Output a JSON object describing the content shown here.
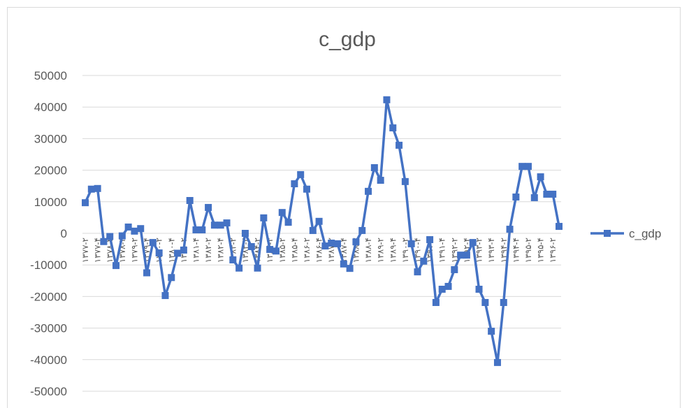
{
  "chart_data": {
    "type": "line",
    "title": "c_gdp",
    "categories": [
      "۱۳۷۷-۲",
      null,
      "۱۳۷۷-۴",
      null,
      "۱۳۷۸-۲",
      null,
      "۱۳۷۸-۴",
      null,
      "۱۳۷۹-۲",
      null,
      "۱۳۷۹-۴",
      null,
      "۱۳۸۰-۲",
      null,
      "۱۳۸۰-۴",
      null,
      "۱۳۸۱-۲",
      null,
      "۱۳۸۱-۴",
      null,
      "۱۳۸۲-۲",
      null,
      "۱۳۸۲-۴",
      null,
      "۱۳۸۳-۲",
      null,
      "۱۳۸۳-۴",
      null,
      "۱۳۸۴-۲",
      null,
      "۱۳۸۴-۴",
      null,
      "۱۳۸۵-۲",
      null,
      "۱۳۸۵-۴",
      null,
      "۱۳۸۶-۲",
      null,
      "۱۳۸۶-۴",
      null,
      "۱۳۸۷-۲",
      null,
      "۱۳۸۷-۴",
      null,
      "۱۳۸۸-۲",
      null,
      "۱۳۸۸-۴",
      null,
      "۱۳۸۹-۲",
      null,
      "۱۳۸۹-۴",
      null,
      "۱۳۹۰-۲",
      null,
      "۱۳۹۰-۴",
      null,
      "۱۳۹۱-۲",
      null,
      "۱۳۹۱-۴",
      null,
      "۱۳۹۲-۲",
      null,
      "۱۳۹۲-۴",
      null,
      "۱۳۹۳-۲",
      null,
      "۱۳۹۳-۴",
      null,
      "۱۳۹۴-۲",
      null,
      "۱۳۹۴-۴",
      null,
      "۱۳۹۵-۲",
      null,
      "۱۳۹۵-۴",
      null,
      "۱۳۹۶-۲",
      null
    ],
    "series": [
      {
        "name": "c_gdp",
        "color": "#4472c4",
        "values": [
          9700,
          14000,
          14200,
          -2600,
          -1000,
          -10200,
          -800,
          2000,
          700,
          1500,
          -12500,
          -2900,
          -6200,
          -19700,
          -14000,
          -6300,
          -5300,
          10400,
          1100,
          1100,
          8200,
          2600,
          2600,
          3300,
          -8400,
          -11000,
          0,
          -4200,
          -11000,
          4900,
          -5100,
          -5600,
          6600,
          3500,
          15700,
          18600,
          14000,
          900,
          3800,
          -4000,
          -3100,
          -3300,
          -9700,
          -11100,
          -2700,
          900,
          13300,
          20800,
          16800,
          42300,
          33400,
          27900,
          16400,
          -3300,
          -12200,
          -8800,
          -2000,
          -21900,
          -17700,
          -16800,
          -11500,
          -6900,
          -6900,
          -2900,
          -17700,
          -21900,
          -31000,
          -40900,
          -21900,
          1300,
          11500,
          21200,
          21200,
          11300,
          17900,
          12400,
          12400,
          2200
        ]
      }
    ],
    "ylim": [
      -50000,
      50000
    ],
    "yticks": [
      -50000,
      -40000,
      -30000,
      -20000,
      -10000,
      0,
      10000,
      20000,
      30000,
      40000,
      50000
    ],
    "grid": true,
    "legend": "right"
  }
}
